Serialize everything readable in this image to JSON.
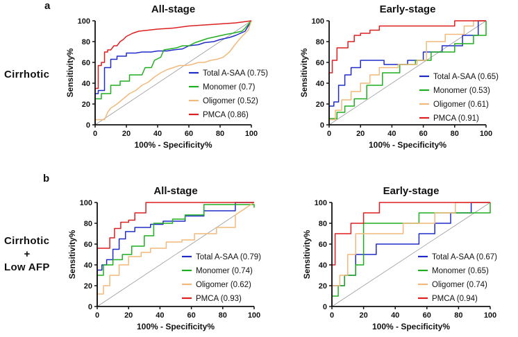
{
  "figure": {
    "panel_a": "a",
    "panel_b": "b",
    "row_a_label": "Cirrhotic",
    "row_b_label_1": "Cirrhotic",
    "row_b_label_2": "+",
    "row_b_label_3": "Low AFP"
  },
  "colors": {
    "Total A-SAA": "#1f2bc9",
    "Monomer": "#1fae1f",
    "Oligomer": "#f2b97a",
    "PMCA": "#dd1f1f",
    "diagonal": "#9a9a9a"
  },
  "chart_data": [
    {
      "type": "line",
      "title": "All-stage",
      "xlabel": "100% - Specificity%",
      "ylabel": "Sensitivity%",
      "xlim": [
        0,
        100
      ],
      "ylim": [
        0,
        100
      ],
      "ticks": [
        "0",
        "20",
        "40",
        "60",
        "80",
        "100"
      ],
      "series": [
        {
          "name": "Total A-SAA",
          "auc_label": "Total A-SAA (0.75)",
          "x": [
            0,
            0,
            2,
            2,
            6,
            6,
            10,
            10,
            14,
            14,
            20,
            20,
            26,
            30,
            36,
            40,
            46,
            50,
            56,
            60,
            66,
            70,
            76,
            80,
            86,
            90,
            96,
            100
          ],
          "y": [
            0,
            30,
            30,
            33,
            33,
            55,
            55,
            63,
            63,
            66,
            66,
            69,
            69,
            70,
            70,
            71,
            71,
            72,
            73,
            76,
            77,
            79,
            80,
            82,
            84,
            86,
            90,
            100
          ]
        },
        {
          "name": "Monomer",
          "auc_label": "Monomer (0.7)",
          "x": [
            0,
            0,
            4,
            4,
            10,
            10,
            16,
            16,
            22,
            22,
            30,
            32,
            36,
            38,
            42,
            44,
            48,
            52,
            56,
            60,
            64,
            68,
            72,
            78,
            84,
            88,
            94,
            96,
            100
          ],
          "y": [
            0,
            25,
            25,
            30,
            30,
            38,
            38,
            42,
            42,
            48,
            48,
            55,
            55,
            62,
            65,
            72,
            73,
            74,
            76,
            76,
            79,
            81,
            83,
            85,
            87,
            88,
            90,
            93,
            100
          ]
        },
        {
          "name": "Oligomer",
          "auc_label": "Oligomer (0.52)",
          "x": [
            0,
            0,
            6,
            8,
            10,
            14,
            18,
            22,
            26,
            30,
            34,
            38,
            42,
            46,
            50,
            54,
            58,
            62,
            66,
            70,
            74,
            78,
            82,
            86,
            90,
            94,
            98,
            100
          ],
          "y": [
            0,
            5,
            5,
            12,
            16,
            20,
            25,
            30,
            33,
            38,
            41,
            46,
            50,
            53,
            55,
            57,
            57,
            58,
            60,
            60,
            62,
            63,
            65,
            70,
            78,
            85,
            91,
            100
          ]
        },
        {
          "name": "PMCA",
          "auc_label": "PMCA (0.86)",
          "x": [
            0,
            0,
            2,
            2,
            4,
            4,
            6,
            6,
            8,
            8,
            10,
            12,
            14,
            16,
            18,
            20,
            24,
            28,
            34,
            40,
            50,
            60,
            70,
            80,
            90,
            100
          ],
          "y": [
            0,
            35,
            35,
            57,
            57,
            60,
            60,
            70,
            70,
            72,
            72,
            76,
            76,
            80,
            82,
            85,
            88,
            90,
            91,
            92,
            93,
            95,
            96,
            97,
            98,
            100
          ]
        }
      ]
    },
    {
      "type": "line",
      "title": "Early-stage",
      "xlabel": "100% - Specificity%",
      "ylabel": "Sensitivity%",
      "xlim": [
        0,
        100
      ],
      "ylim": [
        0,
        100
      ],
      "ticks": [
        "0",
        "20",
        "40",
        "60",
        "80",
        "100"
      ],
      "series": [
        {
          "name": "Total A-SAA",
          "auc_label": "Total A-SAA (0.65)",
          "x": [
            0,
            0,
            3,
            3,
            6,
            6,
            10,
            10,
            14,
            14,
            20,
            20,
            35,
            35,
            50,
            50,
            60,
            60,
            72,
            72,
            85,
            85,
            95,
            95,
            100
          ],
          "y": [
            0,
            18,
            18,
            22,
            22,
            38,
            38,
            48,
            48,
            55,
            55,
            62,
            62,
            58,
            58,
            62,
            62,
            70,
            70,
            76,
            76,
            86,
            86,
            100,
            100
          ]
        },
        {
          "name": "Monomer",
          "auc_label": "Monomer (0.53)",
          "x": [
            0,
            0,
            5,
            5,
            10,
            10,
            16,
            16,
            24,
            24,
            34,
            34,
            45,
            45,
            55,
            55,
            65,
            65,
            80,
            80,
            92,
            92,
            100,
            100
          ],
          "y": [
            0,
            6,
            6,
            12,
            12,
            18,
            18,
            25,
            25,
            38,
            38,
            50,
            50,
            58,
            58,
            62,
            62,
            70,
            70,
            78,
            78,
            86,
            86,
            100
          ]
        },
        {
          "name": "Oligomer",
          "auc_label": "Oligomer (0.61)",
          "x": [
            0,
            0,
            4,
            4,
            8,
            8,
            14,
            14,
            20,
            20,
            26,
            26,
            32,
            32,
            44,
            44,
            56,
            56,
            62,
            62,
            74,
            74,
            86,
            86,
            92,
            92,
            100
          ],
          "y": [
            0,
            5,
            5,
            14,
            14,
            24,
            24,
            32,
            32,
            40,
            40,
            48,
            48,
            55,
            55,
            58,
            58,
            62,
            62,
            80,
            80,
            87,
            87,
            95,
            95,
            100,
            100
          ]
        },
        {
          "name": "PMCA",
          "auc_label": "PMCA (0.91)",
          "x": [
            0,
            0,
            2,
            2,
            5,
            5,
            12,
            12,
            16,
            16,
            20,
            20,
            26,
            26,
            32,
            32,
            40,
            40,
            60,
            60,
            80,
            80,
            100
          ],
          "y": [
            0,
            50,
            50,
            62,
            62,
            74,
            74,
            80,
            80,
            86,
            86,
            88,
            88,
            91,
            91,
            95,
            95,
            95,
            95,
            95,
            95,
            100,
            100
          ]
        }
      ]
    },
    {
      "type": "line",
      "title": "All-stage",
      "xlabel": "100% - Specificity%",
      "ylabel": "Sensitivity%",
      "xlim": [
        0,
        100
      ],
      "ylim": [
        0,
        100
      ],
      "ticks": [
        "0",
        "20",
        "40",
        "60",
        "80",
        "100"
      ],
      "series": [
        {
          "name": "Total A-SAA",
          "auc_label": "Total A-SAA (0.79)",
          "x": [
            0,
            0,
            3,
            3,
            6,
            6,
            10,
            10,
            14,
            14,
            18,
            18,
            24,
            24,
            34,
            34,
            42,
            42,
            56,
            56,
            68,
            68,
            88,
            88,
            100
          ],
          "y": [
            0,
            35,
            35,
            40,
            40,
            45,
            45,
            55,
            55,
            65,
            65,
            72,
            72,
            76,
            76,
            79,
            79,
            82,
            82,
            87,
            87,
            92,
            92,
            100,
            100
          ]
        },
        {
          "name": "Monomer",
          "auc_label": "Monomer (0.74)",
          "x": [
            0,
            0,
            4,
            4,
            10,
            10,
            16,
            16,
            22,
            22,
            30,
            30,
            36,
            36,
            48,
            48,
            56,
            56,
            68,
            68,
            100,
            100
          ],
          "y": [
            0,
            30,
            30,
            40,
            40,
            45,
            45,
            50,
            50,
            58,
            58,
            68,
            68,
            80,
            80,
            84,
            84,
            88,
            88,
            98,
            98,
            95
          ]
        },
        {
          "name": "Oligomer",
          "auc_label": "Oligomer (0.62)",
          "x": [
            0,
            0,
            4,
            4,
            8,
            8,
            14,
            14,
            20,
            20,
            28,
            28,
            34,
            34,
            44,
            44,
            54,
            54,
            62,
            62,
            76,
            76,
            88,
            88,
            100
          ],
          "y": [
            0,
            12,
            12,
            20,
            20,
            30,
            30,
            40,
            40,
            48,
            48,
            52,
            52,
            56,
            56,
            62,
            62,
            64,
            64,
            70,
            70,
            76,
            76,
            88,
            100
          ]
        },
        {
          "name": "PMCA",
          "auc_label": "PMCA (0.93)",
          "x": [
            0,
            0,
            8,
            8,
            11,
            11,
            15,
            15,
            20,
            20,
            24,
            24,
            31,
            31,
            100
          ],
          "y": [
            0,
            56,
            56,
            66,
            66,
            75,
            75,
            81,
            81,
            83,
            83,
            90,
            90,
            100,
            100
          ]
        }
      ]
    },
    {
      "type": "line",
      "title": "Early-stage",
      "xlabel": "100% - Specificity%",
      "ylabel": "Sensitivity%",
      "xlim": [
        0,
        100
      ],
      "ylim": [
        0,
        100
      ],
      "ticks": [
        "0",
        "20",
        "40",
        "60",
        "80",
        "100"
      ],
      "series": [
        {
          "name": "Total A-SAA",
          "auc_label": "Total A-SAA (0.67)",
          "x": [
            0,
            0,
            8,
            8,
            15,
            15,
            28,
            28,
            55,
            55,
            65,
            65,
            75,
            75,
            88,
            88,
            100
          ],
          "y": [
            0,
            20,
            20,
            30,
            30,
            50,
            50,
            60,
            60,
            70,
            70,
            80,
            80,
            90,
            90,
            100,
            100
          ]
        },
        {
          "name": "Monomer",
          "auc_label": "Monomer (0.65)",
          "x": [
            0,
            0,
            4,
            4,
            8,
            8,
            15,
            15,
            20,
            20,
            38,
            38,
            55,
            55,
            72,
            72,
            100,
            100
          ],
          "y": [
            0,
            10,
            10,
            20,
            20,
            30,
            30,
            40,
            40,
            80,
            80,
            80,
            80,
            90,
            90,
            90,
            90,
            100
          ]
        },
        {
          "name": "Oligomer",
          "auc_label": "Oligomer (0.74)",
          "x": [
            0,
            0,
            5,
            5,
            10,
            10,
            15,
            15,
            30,
            30,
            45,
            45,
            65,
            65,
            78,
            78,
            100
          ],
          "y": [
            0,
            20,
            20,
            30,
            30,
            50,
            50,
            70,
            70,
            70,
            70,
            80,
            80,
            90,
            90,
            100,
            100
          ]
        },
        {
          "name": "PMCA",
          "auc_label": "PMCA (0.94)",
          "x": [
            0,
            0,
            2,
            2,
            12,
            12,
            20,
            20,
            30,
            30,
            100
          ],
          "y": [
            0,
            40,
            40,
            70,
            70,
            80,
            80,
            90,
            90,
            100,
            100
          ]
        }
      ]
    }
  ]
}
